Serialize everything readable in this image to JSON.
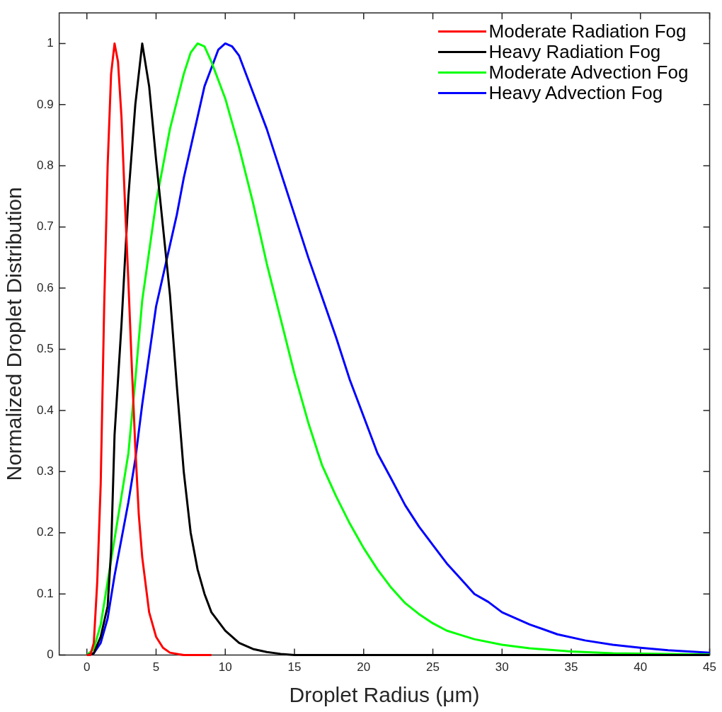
{
  "chart_data": {
    "type": "line",
    "xlabel": "Droplet Radius (μm)",
    "ylabel": "Normalized Droplet Distribution",
    "xlim": [
      -2,
      45
    ],
    "xticks": [
      0,
      5,
      10,
      15,
      20,
      25,
      30,
      35,
      40,
      45
    ],
    "ylim": [
      0,
      1.05
    ],
    "yticks": [
      0,
      0.1,
      0.2,
      0.3,
      0.4,
      0.5,
      0.6,
      0.7,
      0.8,
      0.9,
      1
    ],
    "grid": false,
    "legend": "top right",
    "series": [
      {
        "name": "Moderate Radiation Fog",
        "color": "#ff0000",
        "x": [
          0,
          0.25,
          0.5,
          0.75,
          1,
          1.25,
          1.5,
          1.75,
          2,
          2.25,
          2.5,
          2.75,
          3,
          3.25,
          3.5,
          3.75,
          4,
          4.5,
          5,
          5.5,
          6,
          7,
          9
        ],
        "values": [
          0,
          0,
          0.02,
          0.12,
          0.28,
          0.57,
          0.8,
          0.95,
          1,
          0.97,
          0.88,
          0.74,
          0.61,
          0.47,
          0.34,
          0.23,
          0.16,
          0.07,
          0.03,
          0.012,
          0.004,
          0,
          0
        ]
      },
      {
        "name": "Heavy Radiation Fog",
        "color": "#000000",
        "x": [
          0,
          0.5,
          1,
          1.5,
          1.75,
          2,
          2.5,
          3,
          3.5,
          4,
          4.5,
          5,
          5.5,
          6,
          6.5,
          7,
          7.5,
          8,
          8.5,
          9,
          10,
          11,
          12,
          13,
          14,
          15,
          16,
          45
        ],
        "values": [
          0,
          0.003,
          0.03,
          0.08,
          0.17,
          0.36,
          0.54,
          0.75,
          0.9,
          1,
          0.93,
          0.81,
          0.7,
          0.59,
          0.44,
          0.3,
          0.2,
          0.14,
          0.1,
          0.07,
          0.04,
          0.02,
          0.01,
          0.005,
          0.002,
          0,
          0,
          0
        ]
      },
      {
        "name": "Moderate Advection Fog",
        "color": "#00ff00",
        "x": [
          0,
          0.5,
          1,
          1.5,
          2,
          2.5,
          3,
          3.5,
          4,
          4.5,
          5,
          5.5,
          6,
          6.5,
          7,
          7.5,
          8,
          8.5,
          9,
          9.5,
          10,
          11,
          12,
          13,
          14,
          15,
          16,
          17,
          18,
          19,
          20,
          21,
          22,
          23,
          24,
          25,
          26,
          27,
          28,
          30,
          32,
          35,
          38,
          41,
          45
        ],
        "values": [
          0,
          0.01,
          0.05,
          0.12,
          0.19,
          0.26,
          0.33,
          0.45,
          0.58,
          0.66,
          0.74,
          0.8,
          0.86,
          0.905,
          0.95,
          0.985,
          1,
          0.995,
          0.97,
          0.94,
          0.91,
          0.83,
          0.74,
          0.64,
          0.55,
          0.46,
          0.38,
          0.31,
          0.26,
          0.215,
          0.175,
          0.14,
          0.11,
          0.085,
          0.067,
          0.052,
          0.04,
          0.033,
          0.026,
          0.017,
          0.011,
          0.006,
          0.003,
          0.002,
          0.001
        ]
      },
      {
        "name": "Heavy Advection Fog",
        "color": "#0000ff",
        "x": [
          0,
          0.5,
          1,
          1.5,
          2,
          2.5,
          3,
          3.5,
          4,
          4.5,
          5,
          5.5,
          6,
          6.5,
          7,
          7.5,
          8,
          8.5,
          9,
          9.5,
          10,
          10.5,
          11,
          12,
          13,
          14,
          15,
          16,
          17,
          18,
          19,
          20,
          21,
          22,
          23,
          24,
          25,
          26,
          27,
          28,
          29,
          30,
          32,
          34,
          36,
          38,
          40,
          42,
          45
        ],
        "values": [
          0,
          0.003,
          0.02,
          0.06,
          0.13,
          0.19,
          0.25,
          0.32,
          0.41,
          0.49,
          0.57,
          0.62,
          0.67,
          0.72,
          0.78,
          0.83,
          0.88,
          0.93,
          0.96,
          0.99,
          1,
          0.995,
          0.98,
          0.92,
          0.86,
          0.79,
          0.72,
          0.65,
          0.585,
          0.52,
          0.45,
          0.39,
          0.33,
          0.288,
          0.245,
          0.21,
          0.18,
          0.15,
          0.125,
          0.1,
          0.087,
          0.07,
          0.05,
          0.034,
          0.024,
          0.017,
          0.012,
          0.008,
          0.004
        ]
      }
    ]
  }
}
